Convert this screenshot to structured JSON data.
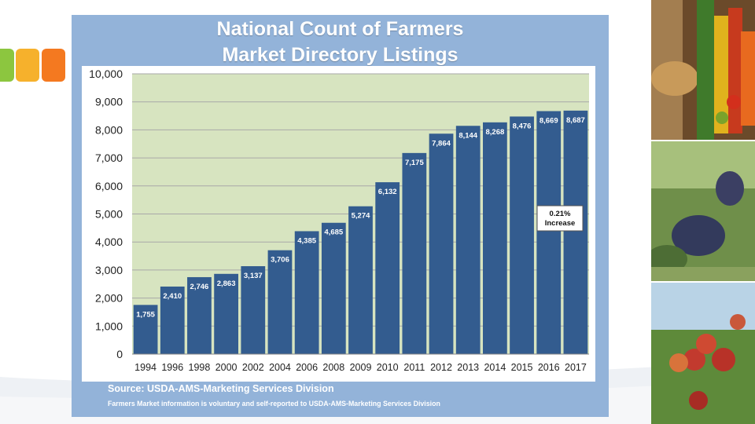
{
  "slide": {
    "source": "Source:  USDA-AMS-Marketing Services Division",
    "note": "Farmers Market information is voluntary and self-reported to USDA-AMS-Marketing Services Division"
  },
  "chart_data": {
    "type": "bar",
    "title_lines": [
      "National Count of Farmers",
      "Market Directory Listings"
    ],
    "categories": [
      "1994",
      "1996",
      "1998",
      "2000",
      "2002",
      "2004",
      "2006",
      "2008",
      "2009",
      "2010",
      "2011",
      "2012",
      "2013",
      "2014",
      "2015",
      "2016",
      "2017"
    ],
    "values": [
      1755,
      2410,
      2746,
      2863,
      3137,
      3706,
      4385,
      4685,
      5274,
      6132,
      7175,
      7864,
      8144,
      8268,
      8476,
      8669,
      8687
    ],
    "data_labels": [
      "1,755",
      "2,410",
      "2,746",
      "2,863",
      "3,137",
      "3,706",
      "4,385",
      "4,685",
      "5,274",
      "6,132",
      "7,175",
      "7,864",
      "8,144",
      "8,268",
      "8,476",
      "8,669",
      "8,687"
    ],
    "yticks": [
      0,
      1000,
      2000,
      3000,
      4000,
      5000,
      6000,
      7000,
      8000,
      9000,
      10000
    ],
    "ytick_labels": [
      "0",
      "1,000",
      "2,000",
      "3,000",
      "4,000",
      "5,000",
      "6,000",
      "7,000",
      "8,000",
      "9,000",
      "10,000"
    ],
    "ylim": [
      0,
      10000
    ],
    "grid": true,
    "annotation_lines": [
      "0.21%",
      "Increase"
    ],
    "colors": {
      "bar": "#335c8f",
      "plot_bg": "#d7e4c0",
      "panel": "#93b3d9",
      "gridline": "#a8a8a8"
    }
  }
}
